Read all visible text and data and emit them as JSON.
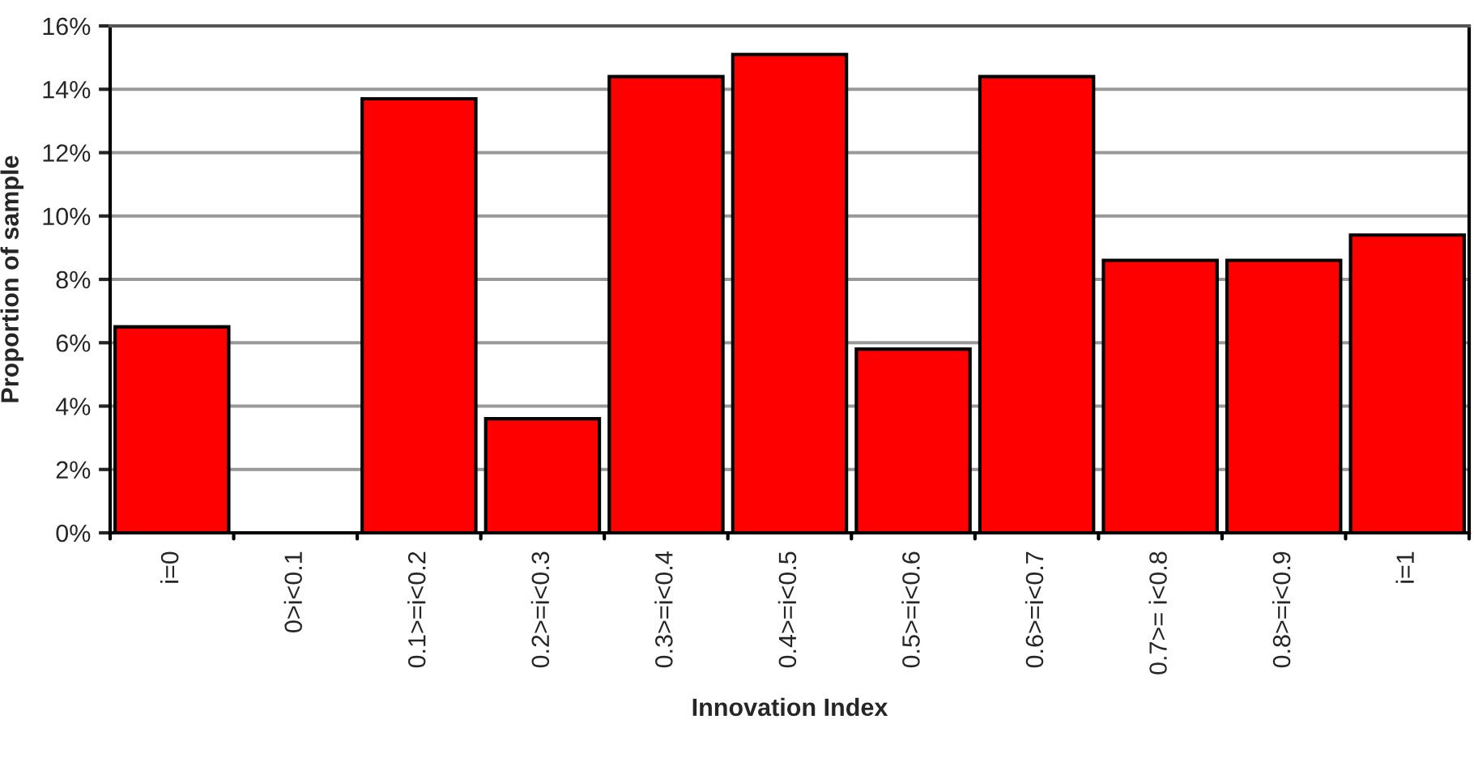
{
  "chart_data": {
    "type": "bar",
    "xlabel": "Innovation Index",
    "ylabel": "Proportion of sample",
    "categories": [
      "i=0",
      "0>i<0.1",
      "0.1>=i<0.2",
      "0.2>=i<0.3",
      "0.3>=i<0.4",
      "0.4>=i<0.5",
      "0.5>=i<0.6",
      "0.6>=i<0.7",
      "0.7>= i<0.8",
      "0.8>=i<0.9",
      "i=1"
    ],
    "values": [
      6.5,
      0,
      13.7,
      3.6,
      14.4,
      15.1,
      5.8,
      14.4,
      8.6,
      8.6,
      9.4
    ],
    "color": "#ff0000",
    "ylim": [
      0,
      16
    ],
    "yticks": [
      {
        "value": 0,
        "label": "0%"
      },
      {
        "value": 2,
        "label": "2%"
      },
      {
        "value": 4,
        "label": "4%"
      },
      {
        "value": 6,
        "label": "6%"
      },
      {
        "value": 8,
        "label": "8%"
      },
      {
        "value": 10,
        "label": "10%"
      },
      {
        "value": 12,
        "label": "12%"
      },
      {
        "value": 14,
        "label": "14%"
      },
      {
        "value": 16,
        "label": "16%"
      }
    ],
    "grid": "y",
    "legend": false
  }
}
